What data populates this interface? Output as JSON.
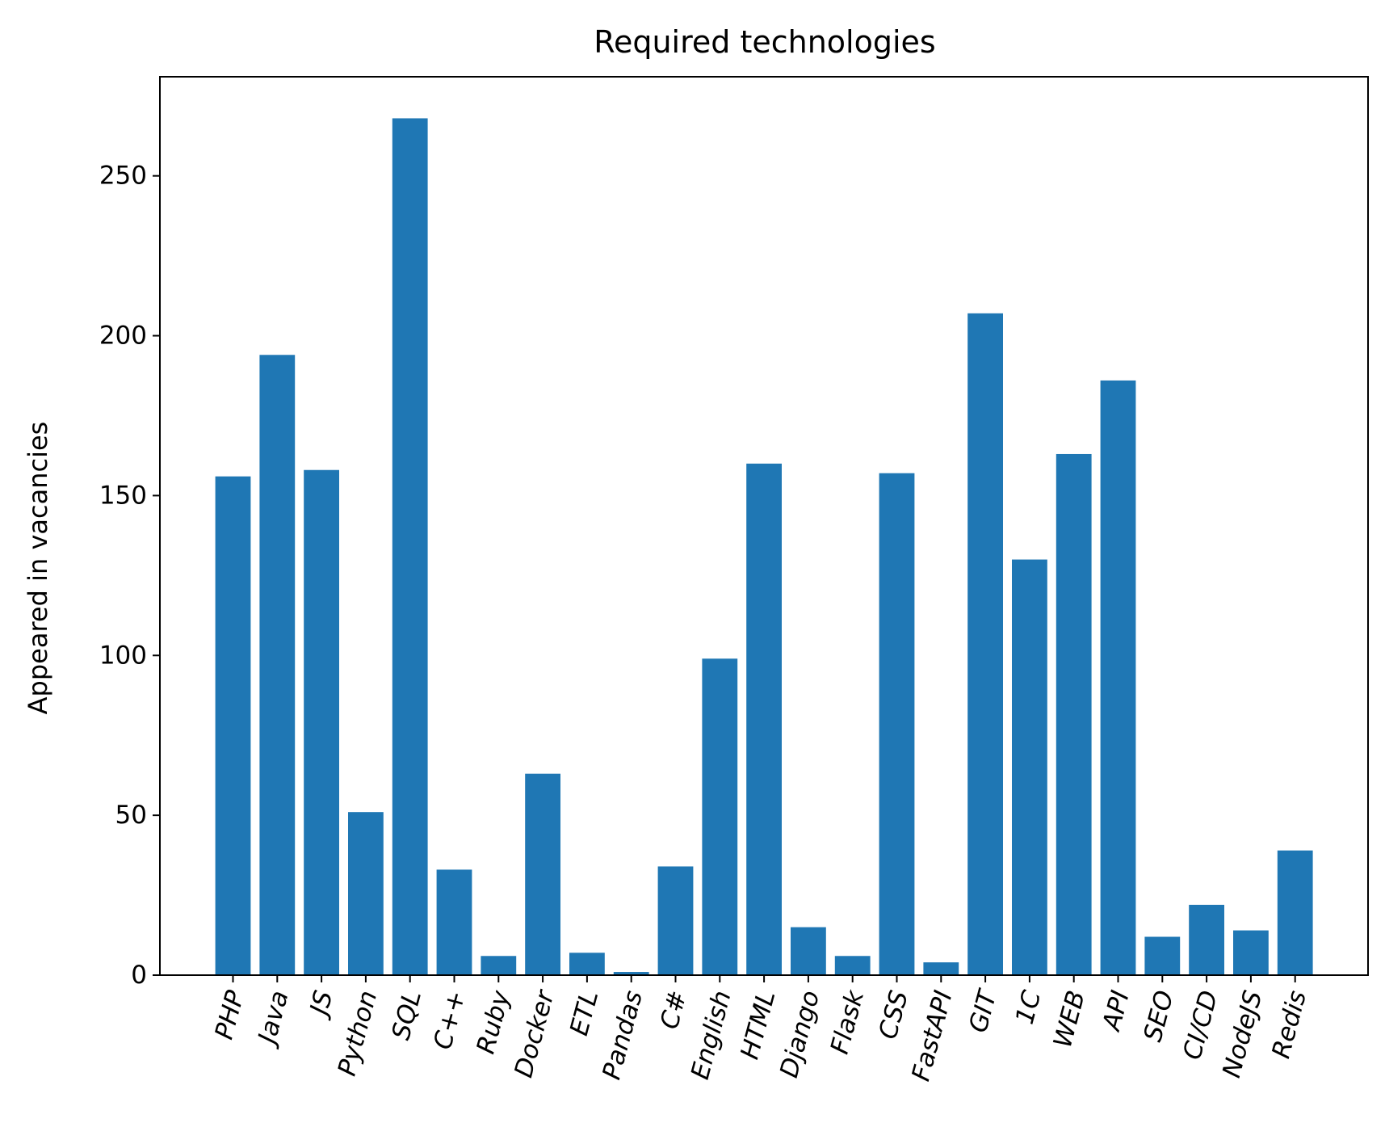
{
  "chart_data": {
    "type": "bar",
    "title": "Required technologies",
    "xlabel": "",
    "ylabel": "Appeared in vacancies",
    "categories": [
      "PHP",
      "Java",
      "JS",
      "Python",
      "SQL",
      "C++",
      "Ruby",
      "Docker",
      "ETL",
      "Pandas",
      "C#",
      "English",
      "HTML",
      "Django",
      "Flask",
      "CSS",
      "FastAPI",
      "GIT",
      "1C",
      "WEB",
      "API",
      "SEO",
      "CI/CD",
      "NodeJS",
      "Redis"
    ],
    "values": [
      156,
      194,
      158,
      51,
      268,
      33,
      6,
      63,
      7,
      1,
      34,
      99,
      160,
      15,
      6,
      157,
      4,
      207,
      130,
      163,
      186,
      12,
      22,
      14,
      39
    ],
    "ylim": [
      0,
      281
    ],
    "yticks": [
      0,
      50,
      100,
      150,
      200,
      250
    ],
    "xtick_rotation": 75,
    "color": "#1f77b4",
    "grid": false
  }
}
